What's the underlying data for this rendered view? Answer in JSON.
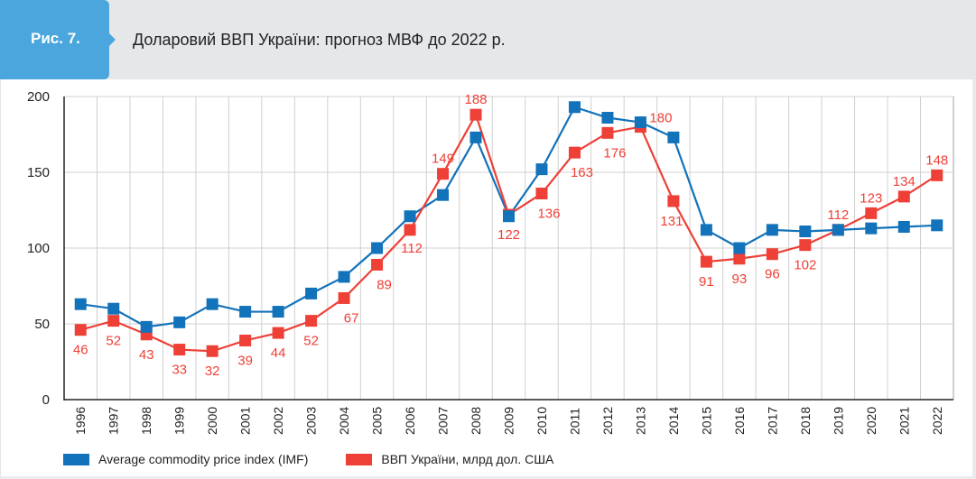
{
  "header": {
    "figure_label": "Рис. 7.",
    "title": "Доларовий ВВП України: прогноз МВФ до 2022 р."
  },
  "colors": {
    "accent": "#4aa6dd",
    "header_bg": "#e6e7e9",
    "blue_series": "#1272ba",
    "red_series": "#ee4037",
    "grid": "#d0d0d0",
    "axis": "#222222"
  },
  "chart_data": {
    "type": "line",
    "title": "Доларовий ВВП України: прогноз МВФ до 2022 р.",
    "xlabel": "",
    "ylabel": "",
    "ylim": [
      0,
      200
    ],
    "yticks": [
      0,
      50,
      100,
      150,
      200
    ],
    "grid": true,
    "legend_position": "bottom-left",
    "x": [
      "1996",
      "1997",
      "1998",
      "1999",
      "2000",
      "2001",
      "2002",
      "2003",
      "2004",
      "2005",
      "2006",
      "2007",
      "2008",
      "2009",
      "2010",
      "2011",
      "2012",
      "2013",
      "2014",
      "2015",
      "2016",
      "2017",
      "2018",
      "2019",
      "2020",
      "2021",
      "2022"
    ],
    "series": [
      {
        "name": "Average commodity price index (IMF)",
        "color": "#1272ba",
        "marker": "square",
        "values": [
          63,
          60,
          48,
          51,
          63,
          58,
          58,
          70,
          81,
          100,
          121,
          135,
          173,
          121,
          152,
          193,
          186,
          183,
          173,
          112,
          100,
          112,
          111,
          112,
          113,
          114,
          115
        ],
        "data_labels": false
      },
      {
        "name": "ВВП України, млрд дол. США",
        "color": "#ee4037",
        "marker": "square",
        "values": [
          46,
          52,
          43,
          33,
          32,
          39,
          44,
          52,
          67,
          89,
          112,
          149,
          188,
          122,
          136,
          163,
          176,
          180,
          131,
          91,
          93,
          96,
          102,
          112,
          123,
          134,
          148
        ],
        "data_labels": true
      }
    ]
  }
}
